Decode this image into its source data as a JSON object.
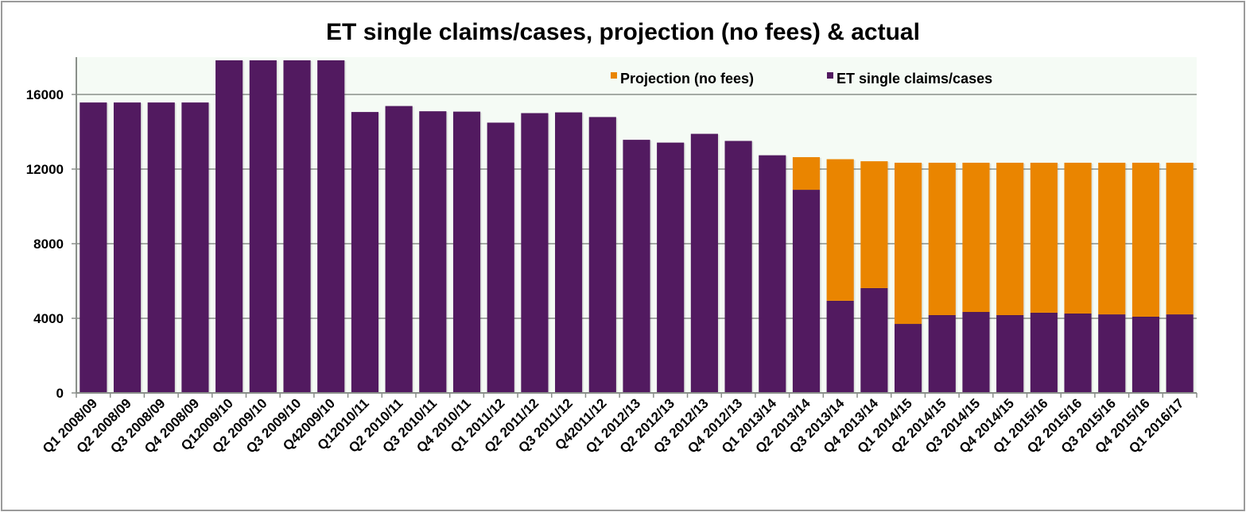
{
  "chart_data": {
    "type": "bar",
    "stacked": true,
    "title": "ET single claims/cases, projection (no fees) & actual",
    "xlabel": "",
    "ylabel": "",
    "ylim": [
      0,
      18000
    ],
    "yticks": [
      0,
      4000,
      8000,
      12000,
      16000
    ],
    "ytick_labels": [
      "0",
      "4000",
      "8000",
      "12000",
      "16000"
    ],
    "grid": true,
    "legend_position": "top-right",
    "categories": [
      "Q1 2008/09",
      "Q2 2008/09",
      "Q3 2008/09",
      "Q4 2008/09",
      "Q12009/10",
      "Q2 2009/10",
      "Q3 2009/10",
      "Q42009/10",
      "Q12010/11",
      "Q2 2010/11",
      "Q3 2010/11",
      "Q4 2010/11",
      "Q1 2011/12",
      "Q2 2011/12",
      "Q3 2011/12",
      "Q42011/12",
      "Q1 2012/13",
      "Q2 2012/13",
      "Q3 2012/13",
      "Q4 2012/13",
      "Q1 2013/14",
      "Q2 2013/14",
      "Q3 2013/14",
      "Q4 2013/14",
      "Q1 2014/15",
      "Q2 2014/15",
      "Q3 2014/15",
      "Q4 2014/15",
      "Q1 2015/16",
      "Q2 2015/16",
      "Q3 2015/16",
      "Q4 2015/16",
      "Q1 2016/17"
    ],
    "series": [
      {
        "name": "ET single claims/cases",
        "color": "#521a60",
        "values": [
          15570,
          15570,
          15570,
          15570,
          17830,
          17830,
          17830,
          17830,
          15060,
          15380,
          15100,
          15080,
          14490,
          15000,
          15040,
          14790,
          13570,
          13420,
          13890,
          13510,
          12740,
          10890,
          4940,
          5620,
          3700,
          4170,
          4340,
          4170,
          4300,
          4255,
          4210,
          4085,
          4210
        ]
      },
      {
        "name": "Projection (no fees)",
        "color": "#ea8500",
        "values": [
          0,
          0,
          0,
          0,
          0,
          0,
          0,
          0,
          0,
          0,
          0,
          0,
          0,
          0,
          0,
          0,
          0,
          0,
          0,
          0,
          0,
          1750,
          7590,
          6800,
          8640,
          8170,
          8000,
          8170,
          8040,
          8085,
          8130,
          8255,
          8130
        ]
      }
    ],
    "legend": [
      {
        "label": "Projection (no fees)",
        "color": "#ea8500"
      },
      {
        "label": "ET single claims/cases",
        "color": "#521a60"
      }
    ],
    "plot_background": "#f5fbf5"
  }
}
